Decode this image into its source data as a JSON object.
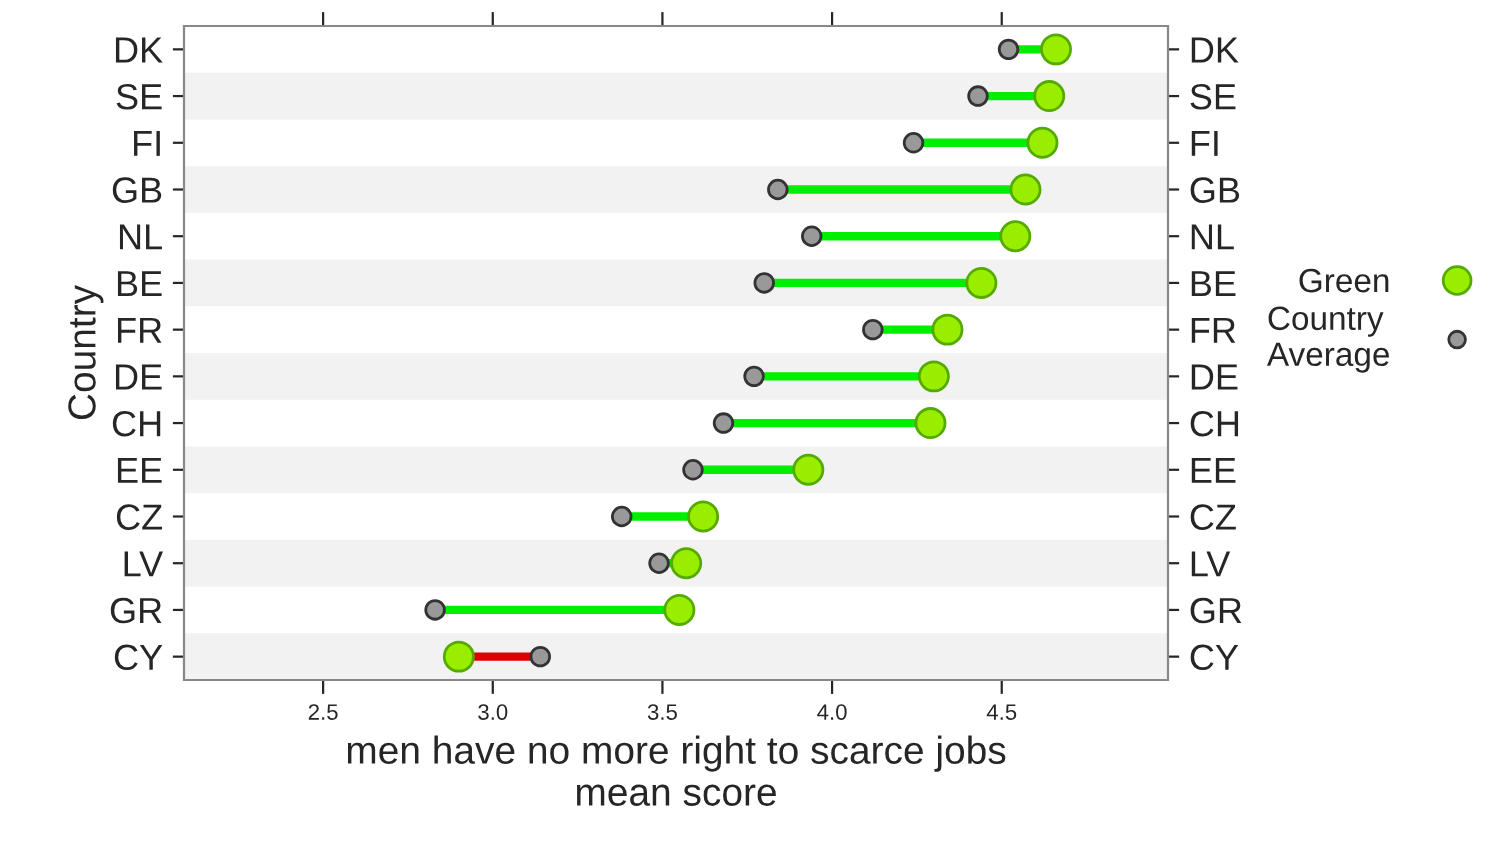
{
  "chart_data": {
    "type": "scatter",
    "orientation": "horizontal",
    "categories": [
      "DK",
      "SE",
      "FI",
      "GB",
      "NL",
      "BE",
      "FR",
      "DE",
      "CH",
      "EE",
      "CZ",
      "LV",
      "GR",
      "CY"
    ],
    "series": [
      {
        "name": "Green",
        "color": "#99ee00",
        "values": [
          4.66,
          4.64,
          4.62,
          4.57,
          4.54,
          4.44,
          4.34,
          4.3,
          4.29,
          3.93,
          3.62,
          3.57,
          3.55,
          2.9
        ]
      },
      {
        "name": "Country Average",
        "color": "#999999",
        "values": [
          4.52,
          4.43,
          4.24,
          3.84,
          3.94,
          3.8,
          4.12,
          3.77,
          3.68,
          3.59,
          3.38,
          3.49,
          2.83,
          3.14
        ]
      }
    ],
    "xlim": [
      2.09,
      4.99
    ],
    "xticks": [
      2.5,
      {
        "value": 3,
        "label": "3.0"
      },
      3.5,
      {
        "value": 4,
        "label": "4.0"
      },
      4.5
    ],
    "xlabel": "men have no more right to scarce jobs\nmean score",
    "ylabel": "Country",
    "legend": "right",
    "grid": false
  }
}
